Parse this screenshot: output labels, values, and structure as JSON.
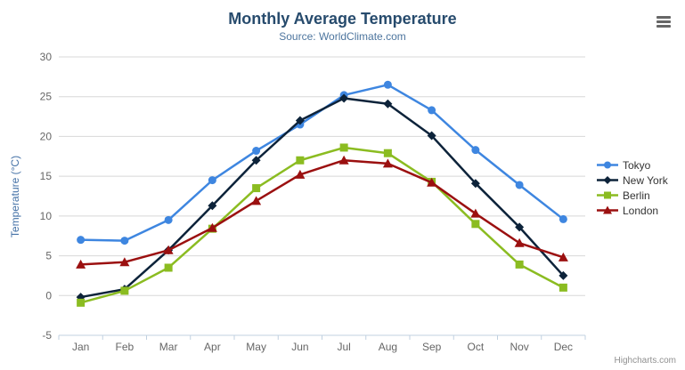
{
  "header": {
    "title": "Monthly Average Temperature",
    "subtitle": "Source: WorldClimate.com"
  },
  "exporting": {
    "menu_icon": "hamburger-icon"
  },
  "credits": {
    "text": "Highcharts.com"
  },
  "chart_data": {
    "type": "line",
    "title": "Monthly Average Temperature",
    "subtitle": "Source: WorldClimate.com",
    "categories": [
      "Jan",
      "Feb",
      "Mar",
      "Apr",
      "May",
      "Jun",
      "Jul",
      "Aug",
      "Sep",
      "Oct",
      "Nov",
      "Dec"
    ],
    "series": [
      {
        "name": "Tokyo",
        "color": "#3e86e0",
        "marker": "circle",
        "values": [
          7.0,
          6.9,
          9.5,
          14.5,
          18.2,
          21.5,
          25.2,
          26.5,
          23.3,
          18.3,
          13.9,
          9.6
        ]
      },
      {
        "name": "New York",
        "color": "#0d233a",
        "marker": "diamond",
        "values": [
          -0.2,
          0.8,
          5.7,
          11.3,
          17.0,
          22.0,
          24.8,
          24.1,
          20.1,
          14.1,
          8.6,
          2.5
        ]
      },
      {
        "name": "Berlin",
        "color": "#8bbc21",
        "marker": "square",
        "values": [
          -0.9,
          0.6,
          3.5,
          8.4,
          13.5,
          17.0,
          18.6,
          17.9,
          14.3,
          9.0,
          3.9,
          1.0
        ]
      },
      {
        "name": "London",
        "color": "#9b1010",
        "marker": "triangle",
        "values": [
          3.9,
          4.2,
          5.7,
          8.5,
          11.9,
          15.2,
          17.0,
          16.6,
          14.2,
          10.3,
          6.6,
          4.8
        ]
      }
    ],
    "xlabel": "",
    "ylabel": "Temperature (°C)",
    "ylim": [
      -5,
      30
    ],
    "yticks": [
      -5,
      0,
      5,
      10,
      15,
      20,
      25,
      30
    ],
    "grid": true,
    "legend_position": "right",
    "theme": {
      "grid_color": "#d8d8d8",
      "axis_line_color": "#c0d0e0",
      "tick_color": "#c0d0e0",
      "label_color": "#666666",
      "title_color": "#274b6d",
      "subtitle_color": "#4d759e",
      "yaxis_title_color": "#4572a7",
      "legend_text_color": "#333333",
      "credit_color": "#909090"
    }
  }
}
